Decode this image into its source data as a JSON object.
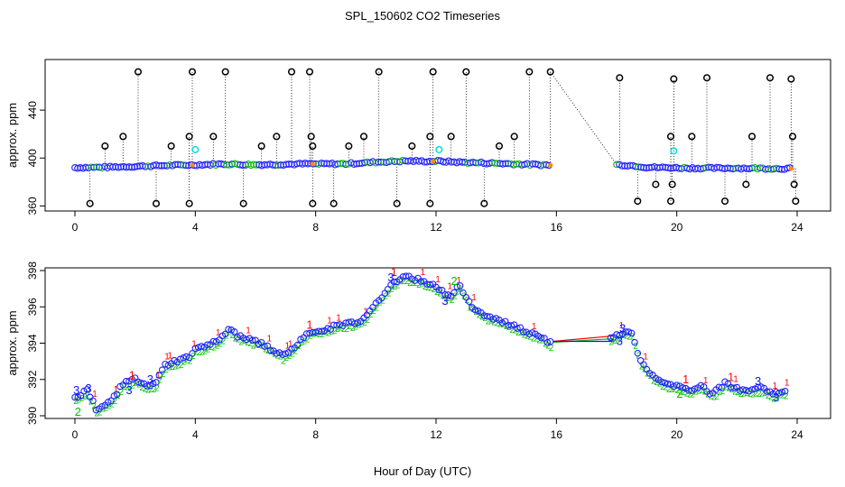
{
  "figure": {
    "title": "SPL_150602  CO2 Timeseries",
    "xlabel": "Hour of Day (UTC)"
  },
  "colors": {
    "outlier": "#000000",
    "series_main": "#2020ff",
    "series_1": "#ff0000",
    "series_2": "#00c000",
    "series_3": "#1010ff",
    "flag": "#00dddd",
    "fill": "#ff8c00"
  },
  "chart_data": [
    {
      "type": "scatter",
      "panel": "top",
      "title": "",
      "xlabel": "",
      "ylabel": "approx. ppm",
      "xlim": [
        0,
        24
      ],
      "ylim": [
        358,
        480
      ],
      "xticks": [
        0,
        4,
        8,
        12,
        16,
        20,
        24
      ],
      "yticks": [
        360,
        400,
        440
      ],
      "baseline": [
        [
          0.0,
          392.0
        ],
        [
          1.0,
          392.3
        ],
        [
          2.0,
          393.0
        ],
        [
          3.0,
          393.8
        ],
        [
          3.9,
          394.2
        ],
        [
          4.0,
          394.3
        ],
        [
          5.0,
          395.0
        ],
        [
          6.0,
          394.4
        ],
        [
          7.0,
          394.8
        ],
        [
          7.8,
          395.2
        ],
        [
          8.0,
          395.0
        ],
        [
          9.0,
          395.2
        ],
        [
          10.0,
          396.6
        ],
        [
          11.0,
          397.6
        ],
        [
          11.8,
          397.2
        ],
        [
          12.0,
          397.4
        ],
        [
          13.0,
          396.3
        ],
        [
          14.0,
          395.6
        ],
        [
          15.0,
          394.7
        ],
        [
          15.8,
          394.1
        ],
        [
          18.0,
          394.5
        ],
        [
          18.6,
          393.6
        ],
        [
          19.0,
          392.3
        ],
        [
          20.0,
          391.8
        ],
        [
          21.0,
          391.5
        ],
        [
          22.0,
          391.6
        ],
        [
          23.0,
          391.3
        ],
        [
          23.8,
          391.2
        ]
      ],
      "outliers_high": [
        [
          1.0,
          410
        ],
        [
          1.6,
          418
        ],
        [
          2.1,
          472
        ],
        [
          3.2,
          410
        ],
        [
          3.8,
          418
        ],
        [
          3.9,
          472
        ],
        [
          4.6,
          418
        ],
        [
          5.0,
          472
        ],
        [
          6.2,
          410
        ],
        [
          6.7,
          418
        ],
        [
          7.2,
          472
        ],
        [
          7.8,
          472
        ],
        [
          7.85,
          418
        ],
        [
          7.9,
          410
        ],
        [
          9.1,
          410
        ],
        [
          9.6,
          418
        ],
        [
          10.1,
          472
        ],
        [
          11.2,
          410
        ],
        [
          11.8,
          418
        ],
        [
          11.9,
          472
        ],
        [
          12.5,
          418
        ],
        [
          13.0,
          472
        ],
        [
          14.1,
          410
        ],
        [
          14.6,
          418
        ],
        [
          15.1,
          472
        ],
        [
          15.8,
          472
        ],
        [
          18.1,
          467
        ],
        [
          19.8,
          418
        ],
        [
          19.9,
          466
        ],
        [
          20.5,
          418
        ],
        [
          21.0,
          467
        ],
        [
          22.5,
          418
        ],
        [
          23.1,
          467
        ],
        [
          23.8,
          466
        ],
        [
          23.85,
          418
        ]
      ],
      "outliers_low": [
        [
          0.5,
          362
        ],
        [
          2.7,
          362
        ],
        [
          3.8,
          362
        ],
        [
          5.6,
          362
        ],
        [
          7.9,
          362
        ],
        [
          8.6,
          362
        ],
        [
          10.7,
          362
        ],
        [
          11.8,
          362
        ],
        [
          13.6,
          362
        ],
        [
          18.7,
          364
        ],
        [
          19.3,
          378
        ],
        [
          19.8,
          364
        ],
        [
          19.85,
          378
        ],
        [
          21.6,
          364
        ],
        [
          22.3,
          378
        ],
        [
          23.9,
          378
        ],
        [
          23.95,
          364
        ]
      ],
      "flagged": [
        [
          4.0,
          407
        ],
        [
          12.1,
          407
        ],
        [
          19.9,
          406
        ]
      ]
    },
    {
      "type": "scatter",
      "panel": "bottom",
      "title": "",
      "xlabel": "Hour of Day (UTC)",
      "ylabel": "approx. ppm",
      "xlim": [
        0,
        24
      ],
      "ylim": [
        390,
        398
      ],
      "xticks": [
        0,
        4,
        8,
        12,
        16,
        20,
        24
      ],
      "yticks": [
        390,
        392,
        394,
        396,
        398
      ],
      "series": [
        {
          "name": "mean",
          "points": [
            [
              0.0,
              391.0
            ],
            [
              0.4,
              391.4
            ],
            [
              0.7,
              390.4
            ],
            [
              1.0,
              390.6
            ],
            [
              1.3,
              391.0
            ],
            [
              1.6,
              391.8
            ],
            [
              2.0,
              392.0
            ],
            [
              2.4,
              391.6
            ],
            [
              2.7,
              391.8
            ],
            [
              3.0,
              392.8
            ],
            [
              3.4,
              393.0
            ],
            [
              3.8,
              393.3
            ],
            [
              4.0,
              393.7
            ],
            [
              4.4,
              393.9
            ],
            [
              4.8,
              394.2
            ],
            [
              5.1,
              394.8
            ],
            [
              5.4,
              394.4
            ],
            [
              5.8,
              394.2
            ],
            [
              6.2,
              394.0
            ],
            [
              6.6,
              393.6
            ],
            [
              6.9,
              393.3
            ],
            [
              7.2,
              393.6
            ],
            [
              7.5,
              394.2
            ],
            [
              7.8,
              394.6
            ],
            [
              8.0,
              394.7
            ],
            [
              8.4,
              394.8
            ],
            [
              8.8,
              395.0
            ],
            [
              9.2,
              395.1
            ],
            [
              9.6,
              395.3
            ],
            [
              10.0,
              396.2
            ],
            [
              10.4,
              397.0
            ],
            [
              10.8,
              397.6
            ],
            [
              11.2,
              397.6
            ],
            [
              11.6,
              397.4
            ],
            [
              11.9,
              397.2
            ],
            [
              12.1,
              396.9
            ],
            [
              12.5,
              396.6
            ],
            [
              12.8,
              397.2
            ],
            [
              13.1,
              396.2
            ],
            [
              13.5,
              395.6
            ],
            [
              14.0,
              395.3
            ],
            [
              14.5,
              395.0
            ],
            [
              15.0,
              394.6
            ],
            [
              15.5,
              394.3
            ],
            [
              15.8,
              394.0
            ],
            [
              17.8,
              394.3
            ],
            [
              18.2,
              394.6
            ],
            [
              18.5,
              394.5
            ],
            [
              18.8,
              393.0
            ],
            [
              19.2,
              392.2
            ],
            [
              19.6,
              391.8
            ],
            [
              20.0,
              391.6
            ],
            [
              20.4,
              391.4
            ],
            [
              20.8,
              391.6
            ],
            [
              21.2,
              391.2
            ],
            [
              21.6,
              391.8
            ],
            [
              22.0,
              391.5
            ],
            [
              22.4,
              391.4
            ],
            [
              22.8,
              391.5
            ],
            [
              23.2,
              391.2
            ],
            [
              23.7,
              391.4
            ]
          ]
        }
      ],
      "markers": [
        {
          "label": "3",
          "x": 0.05,
          "y": 391.4,
          "color": "#1010ff"
        },
        {
          "label": "3",
          "x": 0.45,
          "y": 391.5,
          "color": "#1010ff"
        },
        {
          "label": "2",
          "x": 0.1,
          "y": 390.2,
          "color": "#00c000"
        },
        {
          "label": "1",
          "x": 1.9,
          "y": 392.2,
          "color": "#ff0000"
        },
        {
          "label": "3",
          "x": 1.8,
          "y": 391.4,
          "color": "#1010ff"
        },
        {
          "label": "3",
          "x": 2.5,
          "y": 392.0,
          "color": "#1010ff"
        },
        {
          "label": "1",
          "x": 7.8,
          "y": 395.0,
          "color": "#ff0000"
        },
        {
          "label": "1",
          "x": 10.6,
          "y": 397.9,
          "color": "#ff0000"
        },
        {
          "label": "3",
          "x": 10.5,
          "y": 397.6,
          "color": "#1010ff"
        },
        {
          "label": "3",
          "x": 12.3,
          "y": 396.3,
          "color": "#1010ff"
        },
        {
          "label": "2",
          "x": 12.6,
          "y": 397.4,
          "color": "#00c000"
        },
        {
          "label": "3",
          "x": 18.2,
          "y": 394.8,
          "color": "#1010ff"
        },
        {
          "label": "3",
          "x": 18.1,
          "y": 394.1,
          "color": "#1010ff"
        },
        {
          "label": "1",
          "x": 20.3,
          "y": 392.0,
          "color": "#ff0000"
        },
        {
          "label": "2",
          "x": 20.1,
          "y": 391.2,
          "color": "#00c000"
        },
        {
          "label": "1",
          "x": 21.8,
          "y": 392.1,
          "color": "#ff0000"
        },
        {
          "label": "3",
          "x": 22.7,
          "y": 391.9,
          "color": "#1010ff"
        },
        {
          "label": "3",
          "x": 23.3,
          "y": 391.0,
          "color": "#1010ff"
        }
      ],
      "gap_lines": [
        {
          "color": "#ff0000",
          "points": [
            [
              15.9,
              394.1
            ],
            [
              17.9,
              394.4
            ]
          ]
        },
        {
          "color": "#00c000",
          "points": [
            [
              15.9,
              394.05
            ],
            [
              17.9,
              394.25
            ]
          ]
        },
        {
          "color": "#1010ff",
          "points": [
            [
              15.9,
              394.1
            ],
            [
              17.9,
              394.1
            ]
          ]
        }
      ]
    }
  ]
}
